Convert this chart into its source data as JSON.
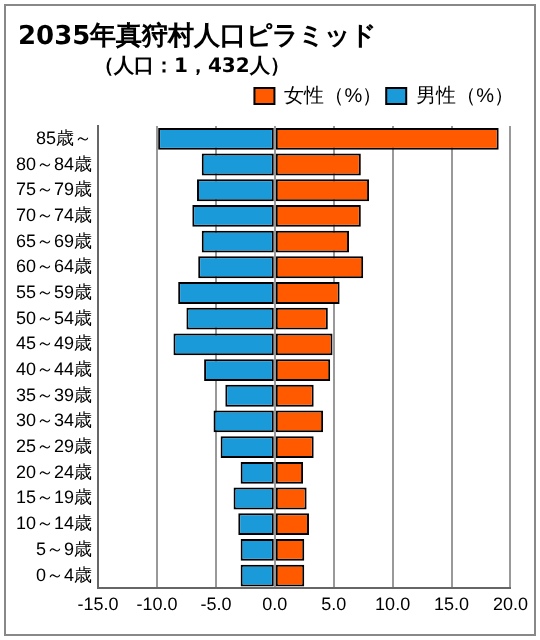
{
  "chart_data": {
    "type": "bar",
    "orientation": "horizontal",
    "stacked": true,
    "title": "2035年真狩村人口ピラミッド",
    "subtitle": "（人口：1，432人）",
    "categories": [
      "85歳～",
      "80～84歳",
      "75～79歳",
      "70～74歳",
      "65～69歳",
      "60～64歳",
      "55～59歳",
      "50～54歳",
      "45～49歳",
      "40～44歳",
      "35～39歳",
      "30～34歳",
      "25～29歳",
      "20～24歳",
      "15～19歳",
      "10～14歳",
      "5～9歳",
      "0～4歳"
    ],
    "series": [
      {
        "name": "女性（%）",
        "color": "#ff5a00",
        "values": [
          19.0,
          7.3,
          8.0,
          7.3,
          6.3,
          7.5,
          5.5,
          4.5,
          4.9,
          4.7,
          3.3,
          4.1,
          3.3,
          2.4,
          2.7,
          2.9,
          2.5,
          2.5
        ]
      },
      {
        "name": "男性（%）",
        "color": "#1a9ad8",
        "values": [
          -9.9,
          -6.2,
          -6.6,
          -7.0,
          -6.2,
          -6.5,
          -8.2,
          -7.5,
          -8.6,
          -6.0,
          -4.2,
          -5.2,
          -4.6,
          -2.9,
          -3.5,
          -3.1,
          -2.9,
          -2.9
        ]
      }
    ],
    "xlim": [
      -15,
      20
    ],
    "xticks": [
      {
        "value": -15,
        "label": "-15.0"
      },
      {
        "value": -10,
        "label": "-10.0"
      },
      {
        "value": -5,
        "label": "-5.0"
      },
      {
        "value": 0,
        "label": "0.0"
      },
      {
        "value": 5,
        "label": "5.0"
      },
      {
        "value": 10,
        "label": "10.0"
      },
      {
        "value": 15,
        "label": "15.0"
      },
      {
        "value": 20,
        "label": "20.0"
      }
    ],
    "grid": "x",
    "legend": "top right"
  }
}
